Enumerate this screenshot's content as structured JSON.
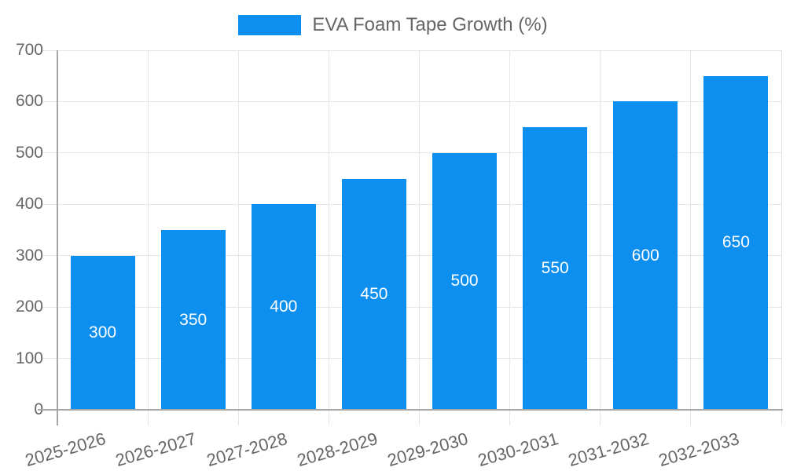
{
  "chart_data": {
    "type": "bar",
    "title": "",
    "legend": {
      "label": "EVA Foam Tape Growth (%)",
      "position": "top-center"
    },
    "categories": [
      "2025-2026",
      "2026-2027",
      "2027-2028",
      "2028-2029",
      "2029-2030",
      "2030-2031",
      "2031-2032",
      "2032-2033"
    ],
    "values": [
      300,
      350,
      400,
      450,
      500,
      550,
      600,
      650
    ],
    "value_labels_shown": true,
    "xlabel": "",
    "ylabel": "",
    "ylim": [
      0,
      700
    ],
    "yticks": [
      0,
      100,
      200,
      300,
      400,
      500,
      600,
      700
    ],
    "grid": "both",
    "x_label_rotation_deg": -16,
    "colors": {
      "bar": "#0d8ff0",
      "value_label": "#ffffff",
      "axis_text": "#666666",
      "axis_line": "#a6a6a6",
      "grid_line": "#e6e6e6",
      "background": "#ffffff"
    }
  }
}
